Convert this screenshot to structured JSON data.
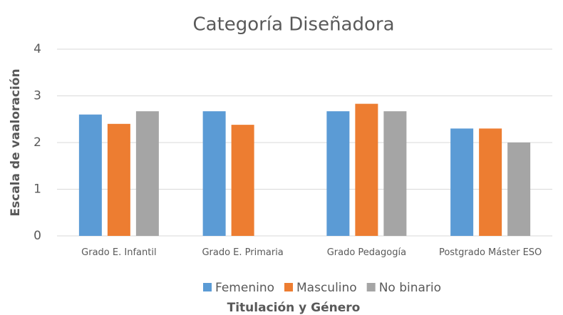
{
  "chart_data": {
    "type": "bar",
    "title": "Categoría Diseñadora",
    "x_label": "Titulación y Género",
    "y_label": "Escala de vaaloración",
    "categories": [
      "Grado E. Infantil",
      "Grado E. Primaria",
      "Grado Pedagogía",
      "Postgrado Máster ESO"
    ],
    "series": [
      {
        "name": "Femenino",
        "color": "#5b9bd5",
        "values": [
          2.6,
          2.67,
          2.67,
          2.3
        ]
      },
      {
        "name": "Masculino",
        "color": "#ed7d31",
        "values": [
          2.4,
          2.38,
          2.83,
          2.3
        ]
      },
      {
        "name": "No binario",
        "color": "#a5a5a5",
        "values": [
          2.67,
          null,
          2.67,
          2.0
        ]
      }
    ],
    "ylim": [
      0,
      4
    ],
    "yticks": [
      0,
      1,
      2,
      3,
      4
    ],
    "grid": true,
    "legend": "bottom"
  }
}
